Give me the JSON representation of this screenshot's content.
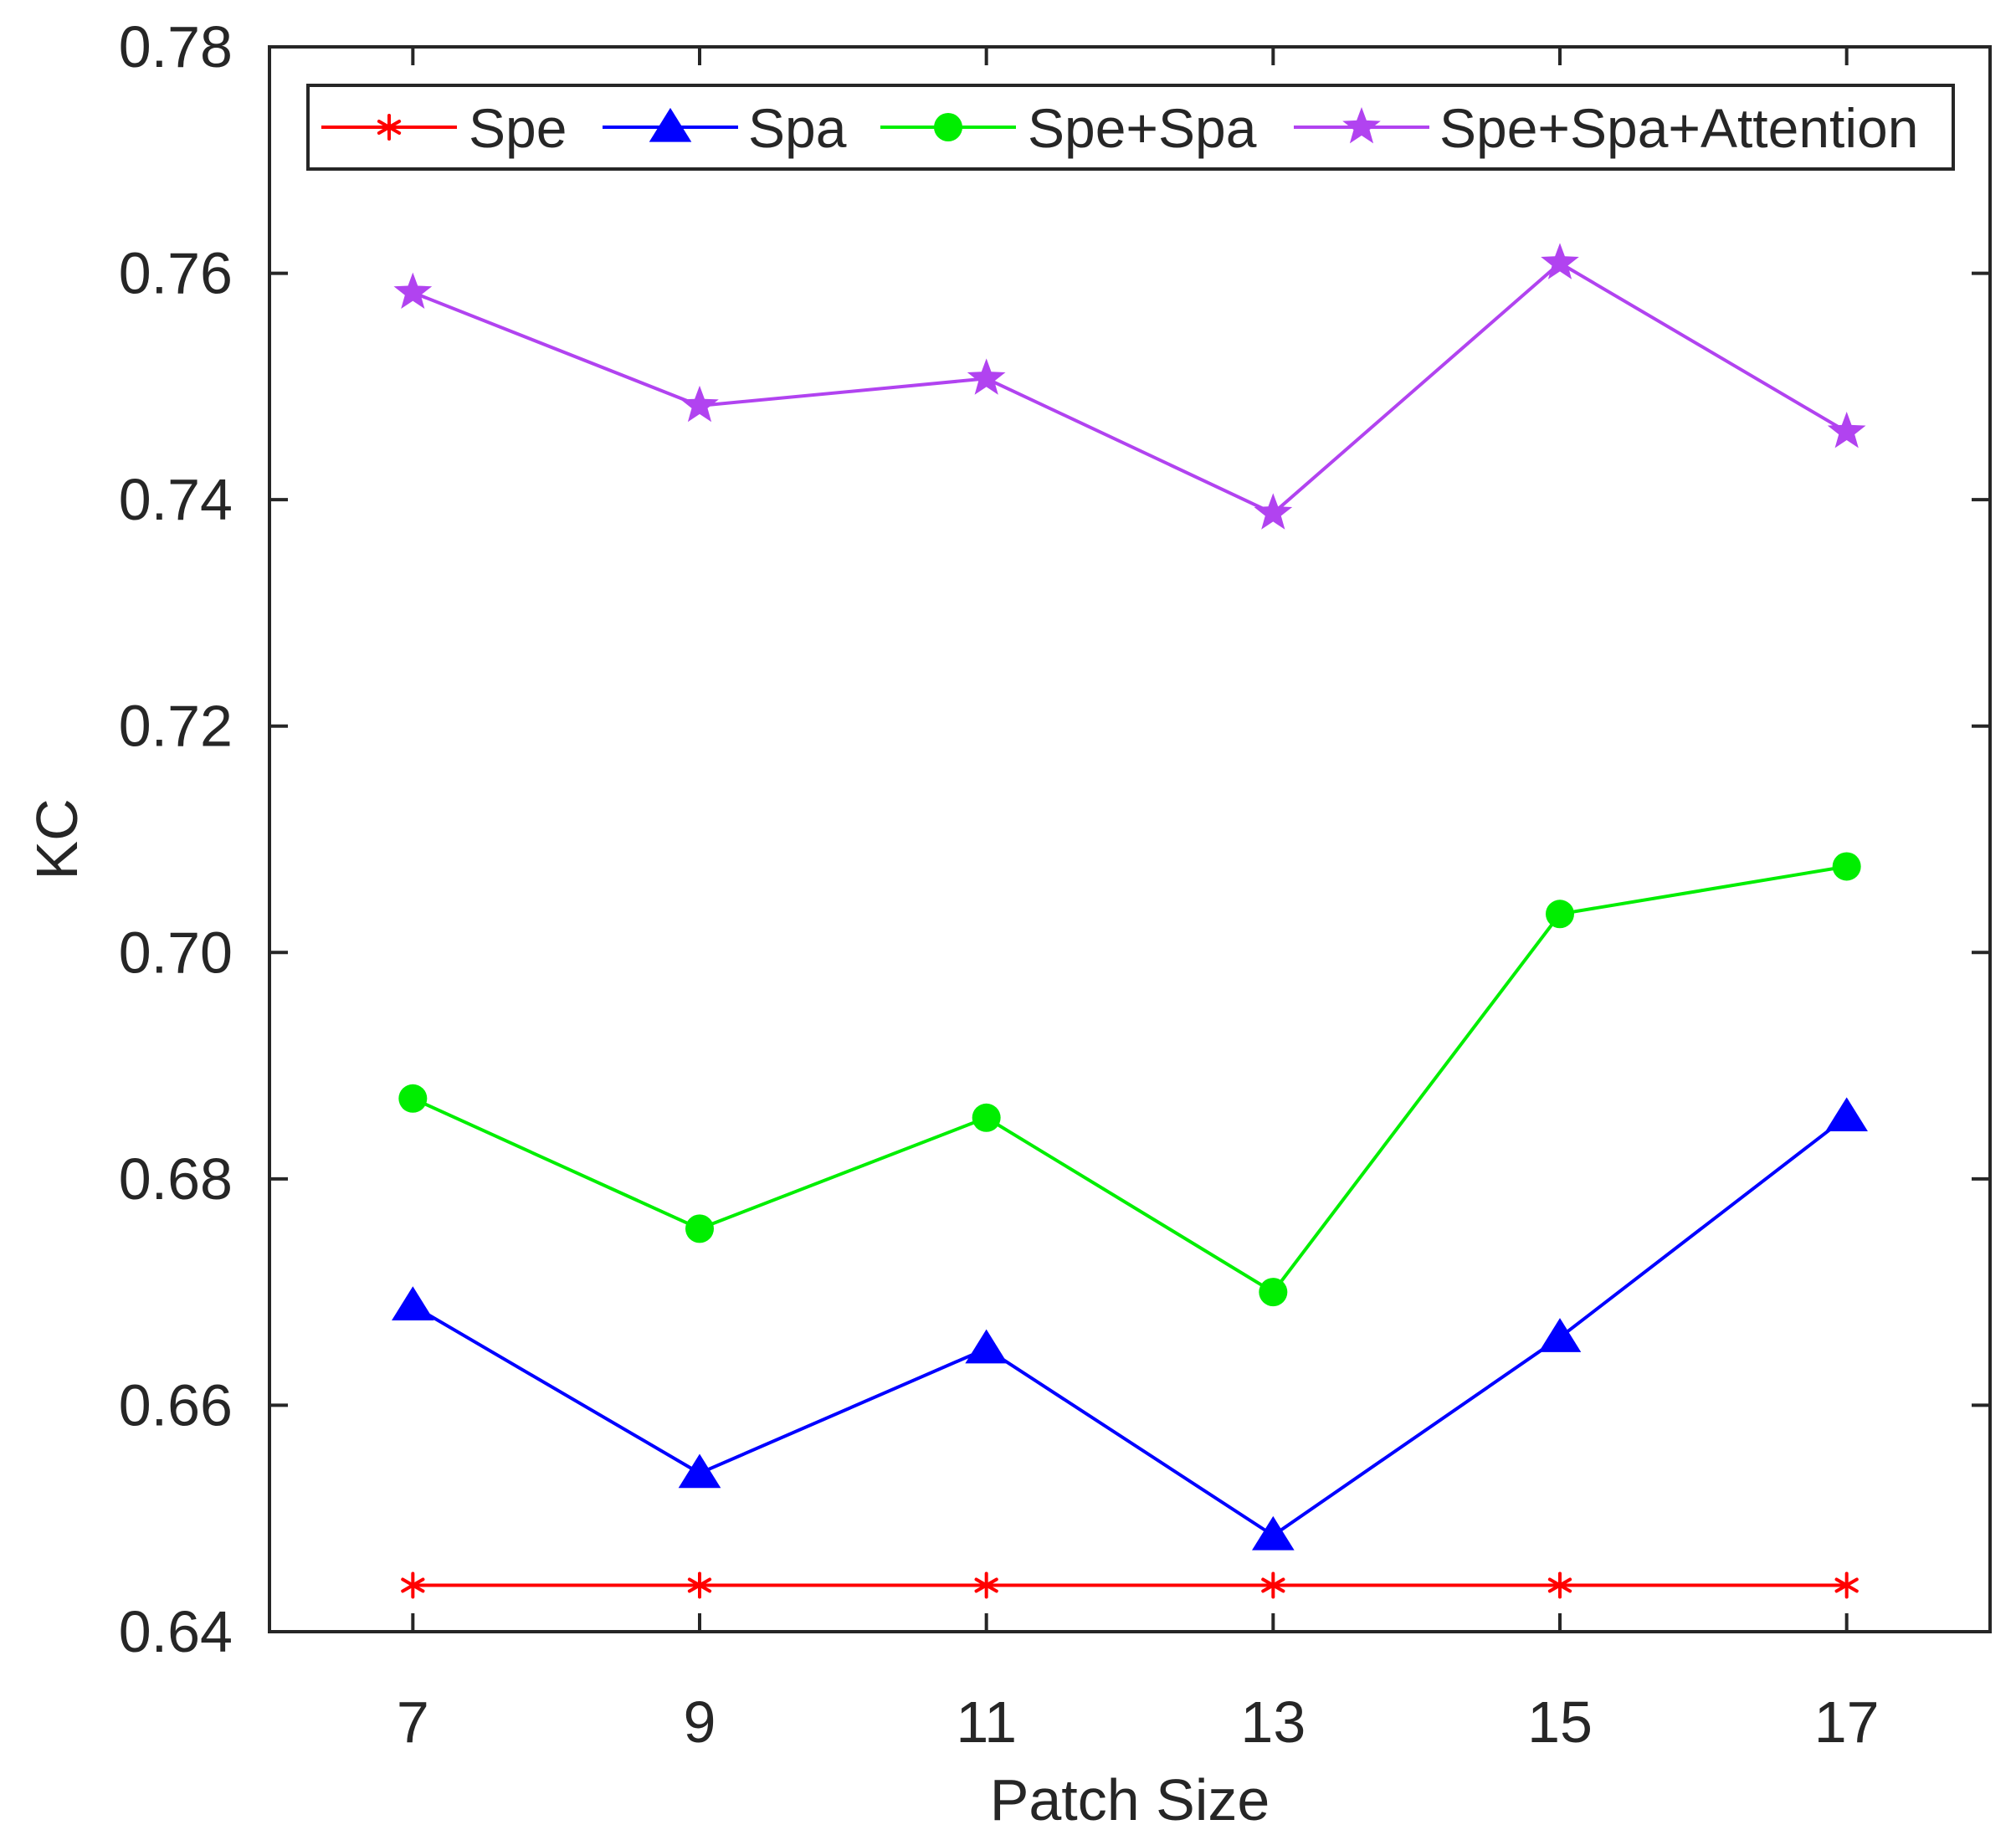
{
  "chart_data": {
    "type": "line",
    "title": "",
    "xlabel": "Patch Size",
    "ylabel": "KC",
    "x": [
      7,
      9,
      11,
      13,
      15,
      17
    ],
    "x_tick_labels": [
      "7",
      "9",
      "11",
      "13",
      "15",
      "17"
    ],
    "xlim": [
      6,
      18
    ],
    "ylim": [
      0.64,
      0.78
    ],
    "y_ticks": [
      0.64,
      0.66,
      0.68,
      0.7,
      0.72,
      0.74,
      0.76,
      0.78
    ],
    "y_tick_labels": [
      "0.64",
      "0.66",
      "0.68",
      "0.70",
      "0.72",
      "0.74",
      "0.76",
      "0.78"
    ],
    "grid": false,
    "legend_position": "top",
    "series": [
      {
        "name": "Spe",
        "color": "#ff0000",
        "marker": "asterisk",
        "values": [
          0.6441,
          0.6441,
          0.6441,
          0.6441,
          0.6441,
          0.6441
        ]
      },
      {
        "name": "Spa",
        "color": "#0000ff",
        "marker": "triangle",
        "values": [
          0.6688,
          0.654,
          0.665,
          0.6485,
          0.666,
          0.6855
        ]
      },
      {
        "name": "Spe+Spa",
        "color": "#00ee00",
        "marker": "circle",
        "values": [
          0.6871,
          0.6756,
          0.6854,
          0.67,
          0.7034,
          0.7076
        ]
      },
      {
        "name": "Spe+Spa+Attention",
        "color": "#b143f0",
        "marker": "star",
        "values": [
          0.7583,
          0.7483,
          0.7507,
          0.7388,
          0.7609,
          0.746
        ]
      }
    ]
  }
}
